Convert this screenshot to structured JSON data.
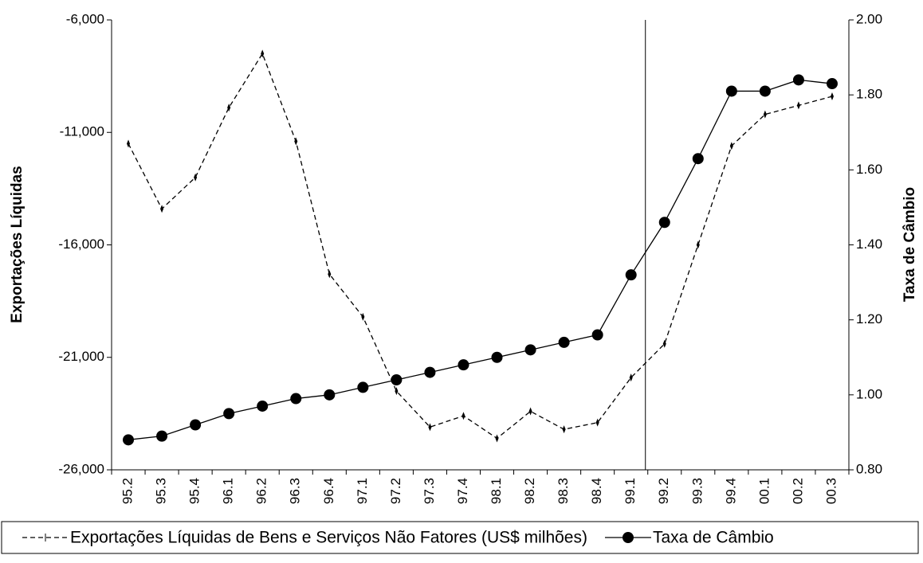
{
  "chart_data": {
    "type": "line",
    "y_label": "Exportações Líquidas",
    "y2_label": "Taxa de Câmbio",
    "categories": [
      "95.2",
      "95.3",
      "95.4",
      "96.1",
      "96.2",
      "96.3",
      "96.4",
      "97.1",
      "97.2",
      "97.3",
      "97.4",
      "98.1",
      "98.2",
      "98.3",
      "98.4",
      "99.1",
      "99.2",
      "99.3",
      "99.4",
      "00.1",
      "00.2",
      "00.3"
    ],
    "series": [
      {
        "name": "Exportações Líquidas de Bens e Serviços Não Fatores (US$ milhões)",
        "color": "#000000",
        "style": "dashed",
        "values": [
          -11500,
          -14400,
          -13000,
          -9900,
          -7500,
          -11400,
          -17300,
          -19200,
          -22500,
          -24100,
          -23600,
          -24600,
          -23400,
          -24200,
          -23900,
          -21900,
          -20400,
          -16000,
          -11600,
          -10200,
          -9800,
          -9400
        ]
      },
      {
        "name": "Taxa de Câmbio",
        "color": "#000000",
        "style": "solid",
        "axis": "y2",
        "values": [
          0.88,
          0.89,
          0.92,
          0.95,
          0.97,
          0.99,
          1.0,
          1.02,
          1.04,
          1.06,
          1.08,
          1.1,
          1.12,
          1.14,
          1.16,
          1.32,
          1.46,
          1.63,
          1.81,
          1.81,
          1.84,
          1.83
        ]
      }
    ],
    "ylim": [
      -26000,
      -6000
    ],
    "yticks": [
      {
        "value": -26000,
        "label": "-26,000"
      },
      {
        "value": -21000,
        "label": "-21,000"
      },
      {
        "value": -16000,
        "label": "-16,000"
      },
      {
        "value": -11000,
        "label": "-11,000"
      },
      {
        "value": -6000,
        "label": "-6,000"
      }
    ],
    "y2lim": [
      0.8,
      2.0
    ],
    "y2ticks": [
      {
        "value": 0.8,
        "label": "0.80"
      },
      {
        "value": 1.0,
        "label": "1.00"
      },
      {
        "value": 1.2,
        "label": "1.20"
      },
      {
        "value": 1.4,
        "label": "1.40"
      },
      {
        "value": 1.6,
        "label": "1.60"
      },
      {
        "value": 1.8,
        "label": "1.80"
      },
      {
        "value": 2.0,
        "label": "2.00"
      }
    ],
    "legend": "bottom"
  }
}
